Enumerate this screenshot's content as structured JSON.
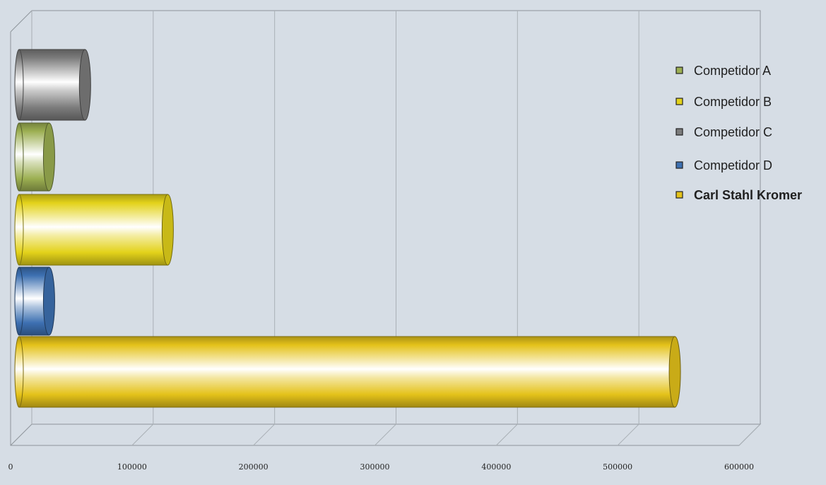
{
  "chart_data": {
    "type": "bar",
    "orientation": "horizontal",
    "style": "3d-cylinder",
    "title": "",
    "xlabel": "",
    "ylabel": "",
    "xlim": [
      0,
      600000
    ],
    "x_ticks": [
      "0",
      "100000",
      "200000",
      "300000",
      "400000",
      "500000",
      "600000"
    ],
    "grid": true,
    "legend_position": "right",
    "series": [
      {
        "name": "Competidor C",
        "value": 55000,
        "color": "#7c7c7c",
        "bold": false
      },
      {
        "name": "Competidor A",
        "value": 25000,
        "color": "#9caf52",
        "bold": false
      },
      {
        "name": "Competidor B",
        "value": 124000,
        "color": "#e3d21a",
        "bold": false
      },
      {
        "name": "Competidor D",
        "value": 25000,
        "color": "#3d70b1",
        "bold": false
      },
      {
        "name": "Carl Stahl Kromer",
        "value": 547000,
        "color": "#e4c21a",
        "bold": true
      }
    ],
    "legend_order": [
      "Competidor A",
      "Competidor B",
      "Competidor C",
      "Competidor D",
      "Carl Stahl Kromer"
    ]
  }
}
